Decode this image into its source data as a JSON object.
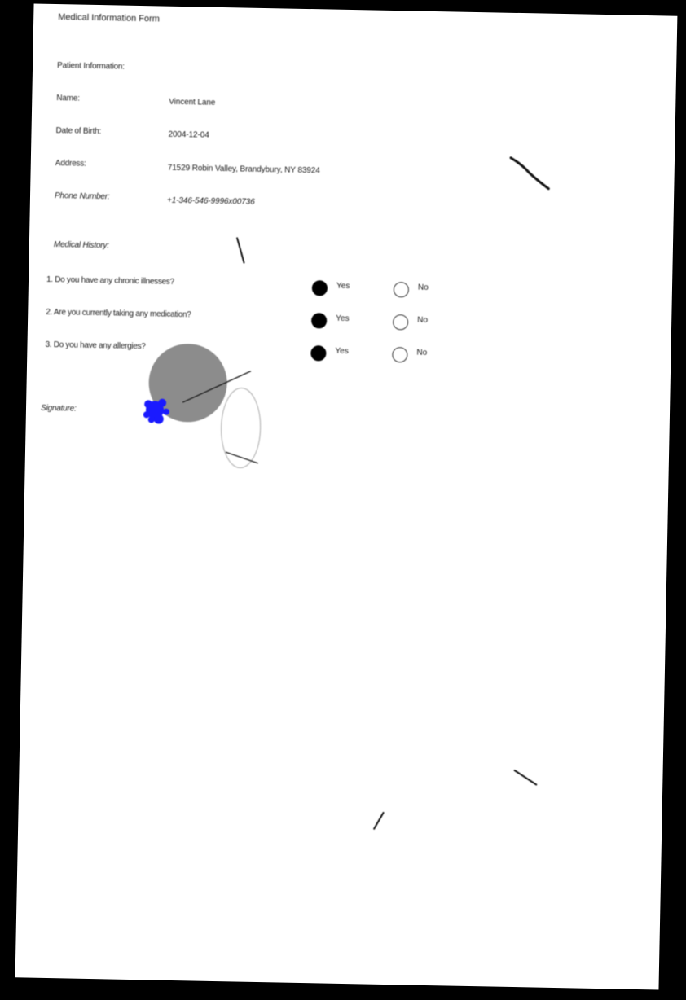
{
  "form": {
    "title": "Medical Information Form",
    "patient_section_label": "Patient Information:",
    "fields": [
      {
        "label": "Name:",
        "value": "Vincent Lane"
      },
      {
        "label": "Date of Birth:",
        "value": "2004-12-04"
      },
      {
        "label": "Address:",
        "value": "71529 Robin Valley, Brandybury, NY 83924"
      },
      {
        "label": "Phone Number:",
        "value": "+1-346-546-9996x00736"
      }
    ],
    "medical_section_label": "Medical History:",
    "questions": [
      {
        "text": "1. Do you have any chronic illnesses?",
        "yes_label": "Yes",
        "no_label": "No",
        "selected": "Yes"
      },
      {
        "text": "2. Are you currently taking any medication?",
        "yes_label": "Yes",
        "no_label": "No",
        "selected": "Yes"
      },
      {
        "text": "3. Do you have any allergies?",
        "yes_label": "Yes",
        "no_label": "No",
        "selected": "Yes"
      }
    ],
    "signature_label": "Signature:"
  },
  "colors": {
    "background_outside": "#000000",
    "paper": "#ffffff",
    "text": "#1a1a1a",
    "stamp_gray": "#8c8c8c",
    "ink_blue": "#1a1aff"
  }
}
